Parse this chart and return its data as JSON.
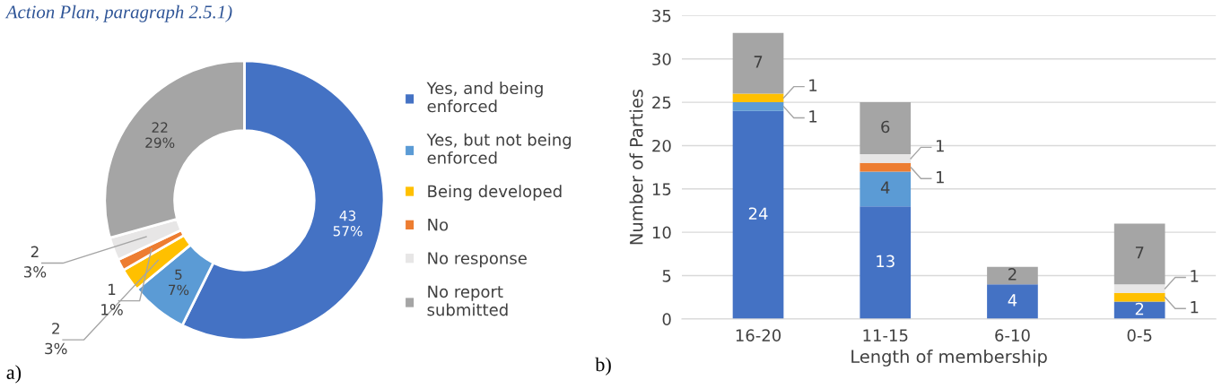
{
  "chart_data": [
    {
      "type": "donut",
      "annotations": [
        "Action Plan, paragraph 2.5.1)",
        "a)"
      ],
      "categories": [
        "Yes, and being\nenforced",
        "Yes, but not being\nenforced",
        "Being developed",
        "No",
        "No response",
        "No report\nsubmitted"
      ],
      "values": [
        43,
        5,
        2,
        1,
        2,
        22
      ],
      "value_labels": [
        "43\n57%",
        "5\n7%",
        "2\n3%",
        "1\n1%",
        "2\n3%",
        "22\n29%"
      ],
      "colors": [
        "#4472c4",
        "#5b9bd5",
        "#ffc000",
        "#ed7d31",
        "#e7e6e6",
        "#a5a5a5"
      ],
      "legend": "right"
    },
    {
      "type": "bar",
      "stacked": true,
      "xlabel": "Length of membership",
      "ylabel": "Number of Parties",
      "annotations": [
        "b)"
      ],
      "categories": [
        "16-20",
        "11-15",
        "6-10",
        "0-5"
      ],
      "ylim": [
        0,
        35
      ],
      "yticks": [
        0,
        5,
        10,
        15,
        20,
        25,
        30,
        35
      ],
      "grid": "y",
      "series": [
        {
          "color": "#4472c4",
          "values": [
            24,
            13,
            4,
            2
          ],
          "value_labels": [
            "24",
            "13",
            "4",
            "2"
          ]
        },
        {
          "color": "#5b9bd5",
          "values": [
            1,
            4,
            0,
            0
          ],
          "value_labels": [
            "1",
            "4",
            null,
            null
          ]
        },
        {
          "color": "#ffc000",
          "values": [
            1,
            0,
            0,
            1
          ],
          "value_labels": [
            "1",
            null,
            null,
            "1"
          ]
        },
        {
          "color": "#ed7d31",
          "values": [
            0,
            1,
            0,
            0
          ],
          "value_labels": [
            null,
            "1",
            null,
            null
          ]
        },
        {
          "color": "#e7e6e6",
          "values": [
            0,
            1,
            0,
            1
          ],
          "value_labels": [
            null,
            "1",
            null,
            "1"
          ]
        },
        {
          "color": "#a5a5a5",
          "values": [
            7,
            6,
            2,
            7
          ],
          "value_labels": [
            "7",
            "6",
            "2",
            "7"
          ]
        }
      ]
    }
  ]
}
